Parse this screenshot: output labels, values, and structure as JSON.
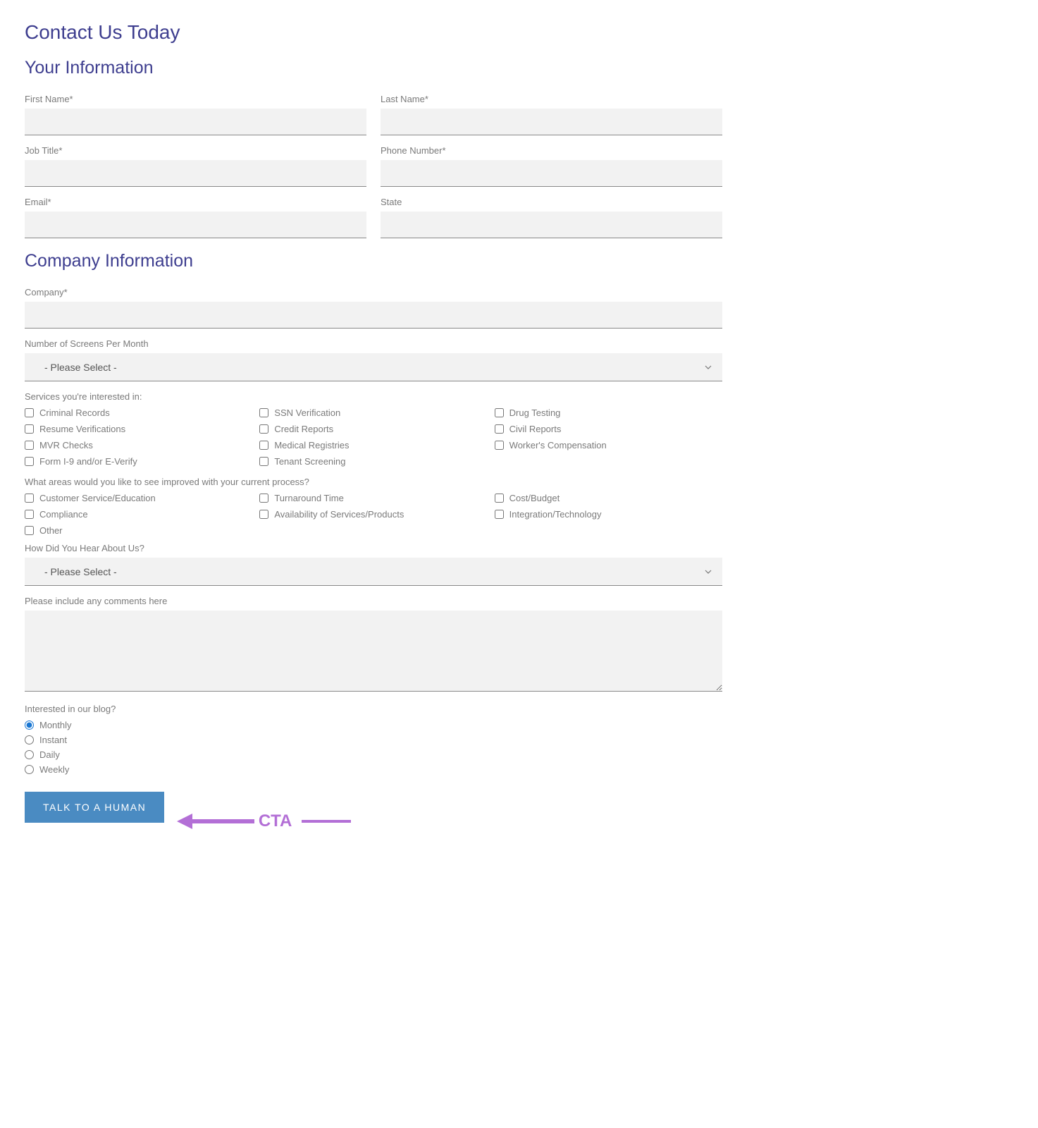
{
  "headings": {
    "page_title": "Contact Us Today",
    "section_personal": "Your Information",
    "section_company": "Company Information"
  },
  "labels": {
    "first_name": "First Name*",
    "last_name": "Last Name*",
    "job_title": "Job Title*",
    "phone": "Phone Number*",
    "email": "Email*",
    "state": "State",
    "company": "Company*",
    "screens_per_month": "Number of Screens Per Month",
    "services_interested": "Services you're interested in:",
    "areas_improve": "What areas would you like to see improved with your current process?",
    "hear_about": "How Did You Hear About Us?",
    "comments": "Please include any comments here",
    "blog_interest": "Interested in our blog?"
  },
  "select_placeholder": "- Please Select -",
  "services": [
    "Criminal Records",
    "SSN Verification",
    "Drug Testing",
    "Resume Verifications",
    "Credit Reports",
    "Civil Reports",
    "MVR Checks",
    "Medical Registries",
    "Worker's Compensation",
    "Form I-9 and/or E-Verify",
    "Tenant Screening"
  ],
  "areas": [
    "Customer Service/Education",
    "Turnaround Time",
    "Cost/Budget",
    "Compliance",
    "Availability of Services/Products",
    "Integration/Technology",
    "Other"
  ],
  "blog_options": [
    "Monthly",
    "Instant",
    "Daily",
    "Weekly"
  ],
  "blog_selected": "Monthly",
  "submit_label": "TALK TO A HUMAN",
  "annotation": {
    "text": "CTA",
    "color": "#b36fd6"
  },
  "colors": {
    "heading": "#3e3e8f",
    "label": "#7a7a7a",
    "input_bg": "#f2f2f2",
    "input_border": "#888888",
    "button_bg": "#4a8bc2",
    "button_text": "#ffffff",
    "annotation": "#b36fd6",
    "background": "#ffffff"
  },
  "typography": {
    "h1_size": 28,
    "h2_size": 25,
    "label_size": 13,
    "button_size": 14,
    "annotation_size": 24
  }
}
